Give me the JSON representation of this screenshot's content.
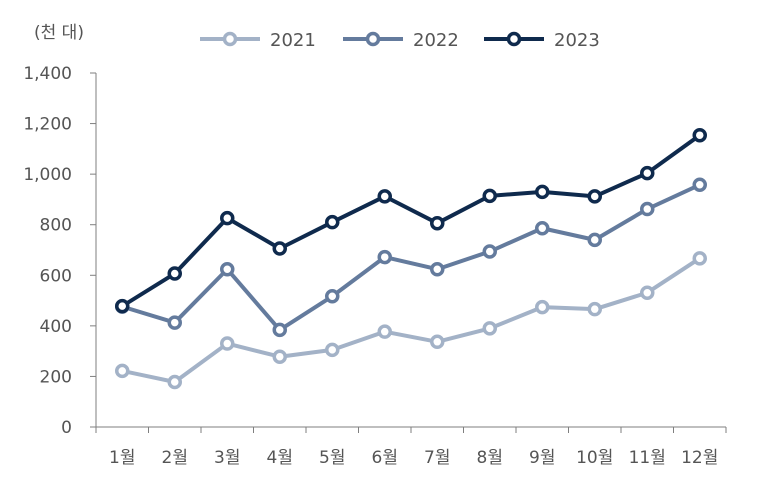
{
  "chart_data": {
    "type": "line",
    "unit_label": "(천 대)",
    "categories": [
      "1월",
      "2월",
      "3월",
      "4월",
      "5월",
      "6월",
      "7월",
      "8월",
      "9월",
      "10월",
      "11월",
      "12월"
    ],
    "ylim": [
      0,
      1400
    ],
    "yticks": [
      "0",
      "200",
      "400",
      "600",
      "800",
      "1,000",
      "1,200",
      "1,400"
    ],
    "ytick_values": [
      0,
      200,
      400,
      600,
      800,
      1000,
      1200,
      1400
    ],
    "grid": false,
    "legend_position": "top",
    "series": [
      {
        "name": "2021",
        "color": "#a3b2c7",
        "values": [
          222,
          178,
          330,
          278,
          305,
          377,
          337,
          390,
          474,
          466,
          531,
          667
        ]
      },
      {
        "name": "2022",
        "color": "#647b9d",
        "values": [
          476,
          413,
          624,
          384,
          517,
          672,
          624,
          694,
          786,
          740,
          862,
          958
        ]
      },
      {
        "name": "2023",
        "color": "#0f2a4d",
        "values": [
          478,
          607,
          826,
          706,
          810,
          912,
          806,
          914,
          930,
          912,
          1004,
          1154
        ]
      }
    ]
  }
}
